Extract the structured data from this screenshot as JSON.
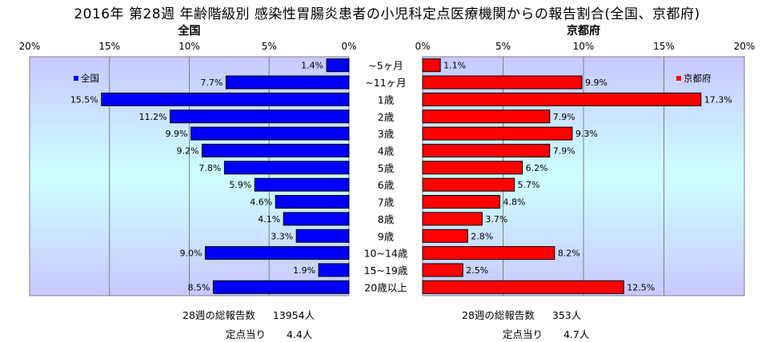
{
  "title": "2016年 第28週 年齢階級別 感染性胃腸炎患者の小児科定点医療機関からの報告割合(全国、京都府)",
  "axis_ticks": [
    "20%",
    "15%",
    "10%",
    "5%",
    "0%"
  ],
  "axis_ticks_right": [
    "0%",
    "5%",
    "10%",
    "15%",
    "20%"
  ],
  "colors": {
    "left_bar": "#0000ff",
    "right_bar": "#ff0000",
    "plot_top": "#c8c8ff",
    "plot_mid": "#ccffff",
    "plot_bottom": "#c8c8ff"
  },
  "chart_data": [
    {
      "type": "bar",
      "orientation": "horizontal",
      "title": "全国",
      "legend": "全国",
      "legend_position": "top-left",
      "grid": true,
      "xlim": [
        0,
        20
      ],
      "categories": [
        "~5ヶ月",
        "~11ヶ月",
        "1歳",
        "2歳",
        "3歳",
        "4歳",
        "5歳",
        "6歳",
        "7歳",
        "8歳",
        "9歳",
        "10~14歳",
        "15~19歳",
        "20歳以上"
      ],
      "values": [
        1.4,
        7.7,
        15.5,
        11.2,
        9.9,
        9.2,
        7.8,
        5.9,
        4.6,
        4.1,
        3.3,
        9.0,
        1.9,
        8.5
      ],
      "value_labels": [
        "1.4%",
        "7.7%",
        "15.5%",
        "11.2%",
        "9.9%",
        "9.2%",
        "7.8%",
        "5.9%",
        "4.6%",
        "4.1%",
        "3.3%",
        "9.0%",
        "1.9%",
        "8.5%"
      ]
    },
    {
      "type": "bar",
      "orientation": "horizontal",
      "title": "京都府",
      "legend": "京都府",
      "legend_position": "top-right",
      "grid": true,
      "xlim": [
        0,
        20
      ],
      "categories": [
        "~5ヶ月",
        "~11ヶ月",
        "1歳",
        "2歳",
        "3歳",
        "4歳",
        "5歳",
        "6歳",
        "7歳",
        "8歳",
        "9歳",
        "10~14歳",
        "15~19歳",
        "20歳以上"
      ],
      "values": [
        1.1,
        9.9,
        17.3,
        7.9,
        9.3,
        7.9,
        6.2,
        5.7,
        4.8,
        3.7,
        2.8,
        8.2,
        2.5,
        12.5
      ],
      "value_labels": [
        "1.1%",
        "9.9%",
        "17.3%",
        "7.9%",
        "9.3%",
        "7.9%",
        "6.2%",
        "5.7%",
        "4.8%",
        "3.7%",
        "2.8%",
        "8.2%",
        "2.5%",
        "12.5%"
      ]
    }
  ],
  "footer": {
    "national_total_label": "28週の総報告数",
    "national_total_value": "13954人",
    "national_per_label": "定点当り",
    "national_per_value": "4.4人",
    "kyoto_total_label": "28週の総報告数",
    "kyoto_total_value": "353人",
    "kyoto_per_label": "定点当り",
    "kyoto_per_value": "4.7人"
  }
}
